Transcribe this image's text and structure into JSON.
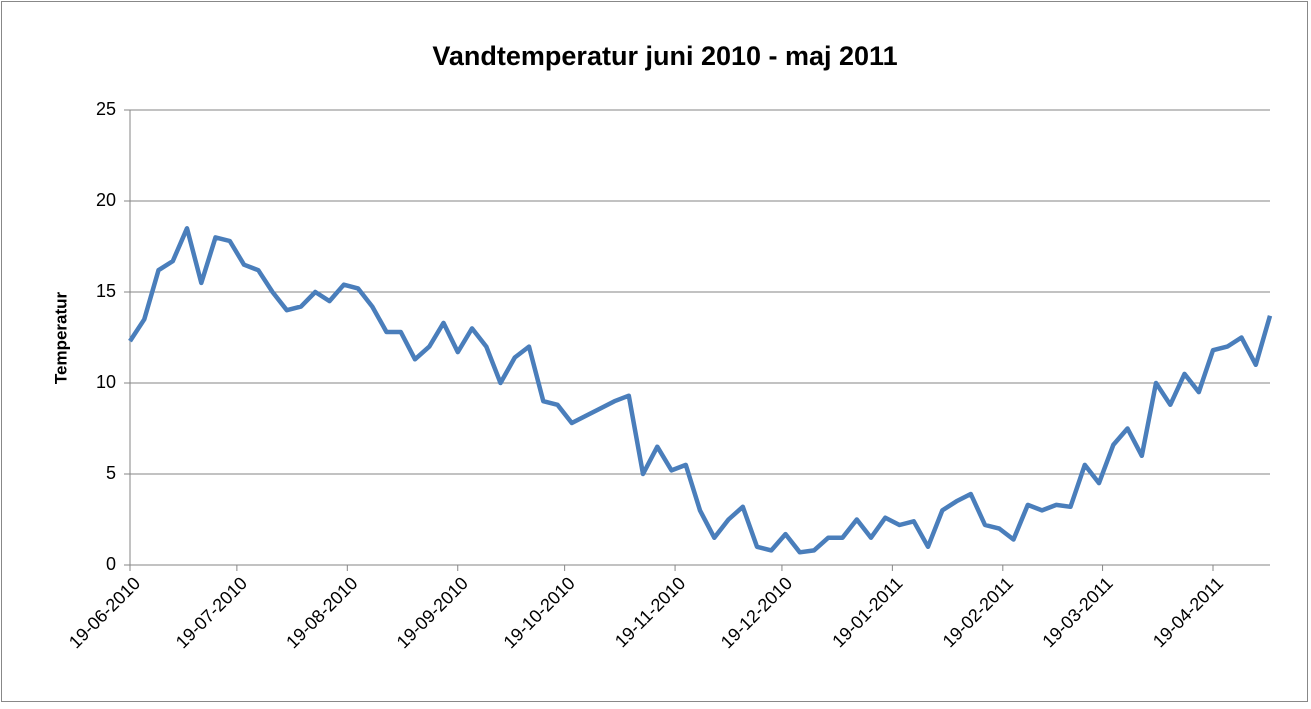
{
  "chart_data": {
    "type": "line",
    "title": "Vandtemperatur juni 2010 - maj 2011",
    "y_label": "Temperatur",
    "x": [
      "2010-06-19",
      "2010-06-23",
      "2010-06-27",
      "2010-07-01",
      "2010-07-05",
      "2010-07-09",
      "2010-07-13",
      "2010-07-17",
      "2010-07-21",
      "2010-07-25",
      "2010-07-29",
      "2010-08-02",
      "2010-08-06",
      "2010-08-10",
      "2010-08-14",
      "2010-08-18",
      "2010-08-22",
      "2010-08-26",
      "2010-08-30",
      "2010-09-03",
      "2010-09-07",
      "2010-09-11",
      "2010-09-15",
      "2010-09-19",
      "2010-09-23",
      "2010-09-27",
      "2010-10-01",
      "2010-10-05",
      "2010-10-09",
      "2010-10-13",
      "2010-10-17",
      "2010-10-21",
      "2010-10-25",
      "2010-10-29",
      "2010-11-02",
      "2010-11-06",
      "2010-11-10",
      "2010-11-14",
      "2010-11-18",
      "2010-11-22",
      "2010-11-26",
      "2010-11-30",
      "2010-12-04",
      "2010-12-08",
      "2010-12-12",
      "2010-12-16",
      "2010-12-20",
      "2010-12-24",
      "2010-12-28",
      "2011-01-01",
      "2011-01-05",
      "2011-01-09",
      "2011-01-13",
      "2011-01-17",
      "2011-01-21",
      "2011-01-25",
      "2011-01-29",
      "2011-02-02",
      "2011-02-06",
      "2011-02-10",
      "2011-02-14",
      "2011-02-18",
      "2011-02-22",
      "2011-02-26",
      "2011-03-02",
      "2011-03-06",
      "2011-03-10",
      "2011-03-14",
      "2011-03-18",
      "2011-03-22",
      "2011-03-26",
      "2011-03-30",
      "2011-04-03",
      "2011-04-07",
      "2011-04-11",
      "2011-04-15",
      "2011-04-19",
      "2011-04-23",
      "2011-04-27",
      "2011-05-01",
      "2011-05-05"
    ],
    "series": [
      {
        "name": "Temperatur",
        "color": "#4a7ebb",
        "values": [
          12.3,
          13.5,
          16.2,
          16.7,
          18.5,
          15.5,
          18.0,
          17.8,
          16.5,
          16.2,
          15.0,
          14.0,
          14.2,
          15.0,
          14.5,
          15.4,
          15.2,
          14.2,
          12.8,
          12.8,
          11.3,
          12.0,
          13.3,
          11.7,
          13.0,
          12.0,
          10.0,
          11.4,
          12.0,
          9.0,
          8.8,
          7.8,
          8.2,
          8.6,
          9.0,
          9.3,
          5.0,
          6.5,
          5.2,
          5.5,
          3.0,
          1.5,
          2.5,
          3.2,
          1.0,
          0.8,
          1.7,
          0.7,
          0.8,
          1.5,
          1.5,
          2.5,
          1.5,
          2.6,
          2.2,
          2.4,
          1.0,
          3.0,
          3.5,
          3.9,
          2.2,
          2.0,
          1.4,
          3.3,
          3.0,
          3.3,
          3.2,
          5.5,
          4.5,
          6.6,
          7.5,
          6.0,
          10.0,
          8.8,
          10.5,
          9.5,
          11.8,
          12.0,
          12.5,
          11.0,
          13.7
        ]
      }
    ],
    "xlim": [
      "2010-06-19",
      "2011-05-05"
    ],
    "xticks": [
      {
        "value": "2010-06-19",
        "label": "19-06-2010"
      },
      {
        "value": "2010-07-19",
        "label": "19-07-2010"
      },
      {
        "value": "2010-08-19",
        "label": "19-08-2010"
      },
      {
        "value": "2010-09-19",
        "label": "19-09-2010"
      },
      {
        "value": "2010-10-19",
        "label": "19-10-2010"
      },
      {
        "value": "2010-11-19",
        "label": "19-11-2010"
      },
      {
        "value": "2010-12-19",
        "label": "19-12-2010"
      },
      {
        "value": "2011-01-19",
        "label": "19-01-2011"
      },
      {
        "value": "2011-02-19",
        "label": "19-02-2011"
      },
      {
        "value": "2011-03-19",
        "label": "19-03-2011"
      },
      {
        "value": "2011-04-19",
        "label": "19-04-2011"
      }
    ],
    "ylim": [
      0,
      25
    ],
    "yticks": [
      0,
      5,
      10,
      15,
      20,
      25
    ],
    "grid": true
  }
}
